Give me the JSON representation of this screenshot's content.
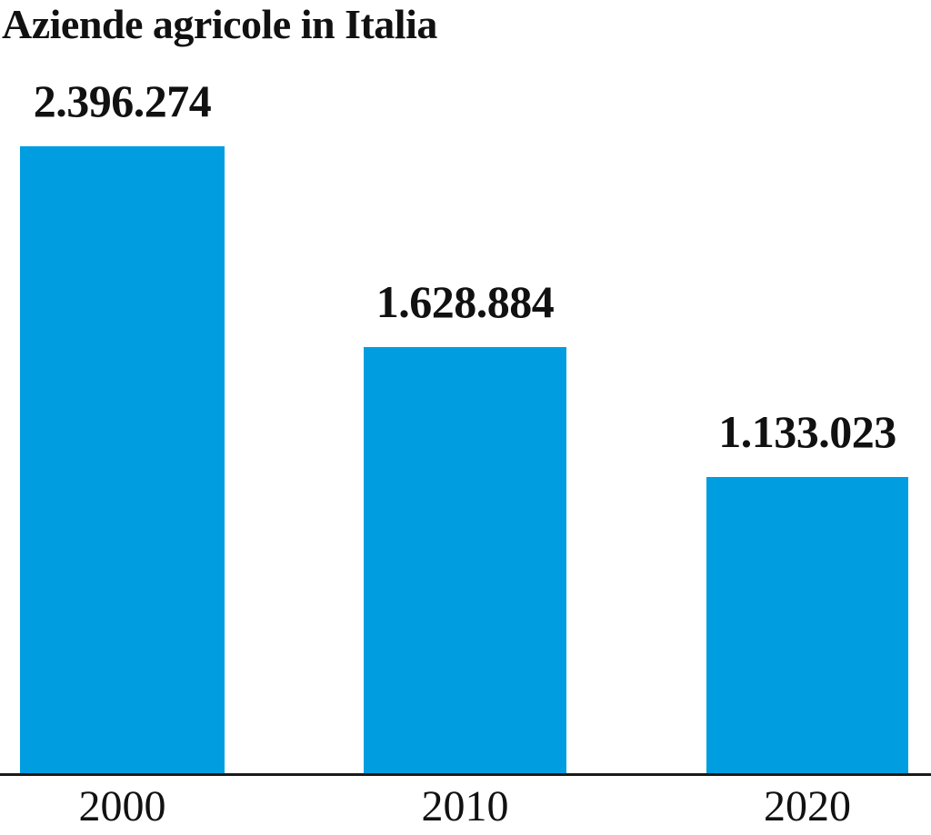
{
  "title": "Aziende agricole in Italia",
  "colors": {
    "bar": "#009EE0",
    "axis": "#1A1A1A",
    "text": "#111111",
    "background": "#FFFFFF"
  },
  "chart_data": {
    "type": "bar",
    "title": "Aziende agricole in Italia",
    "categories": [
      "2000",
      "2010",
      "2020"
    ],
    "values": [
      2396274,
      1628884,
      1133023
    ],
    "value_labels": [
      "2.396.274",
      "1.628.884",
      "1.133.023"
    ],
    "series": [
      {
        "name": "Aziende agricole",
        "values": [
          2396274,
          1628884,
          1133023
        ]
      }
    ],
    "xlabel": "",
    "ylabel": "",
    "ylim": [
      0,
      2396274
    ],
    "grid": false,
    "legend": "none",
    "data_labels_shown": true,
    "baseline_shown": true
  }
}
